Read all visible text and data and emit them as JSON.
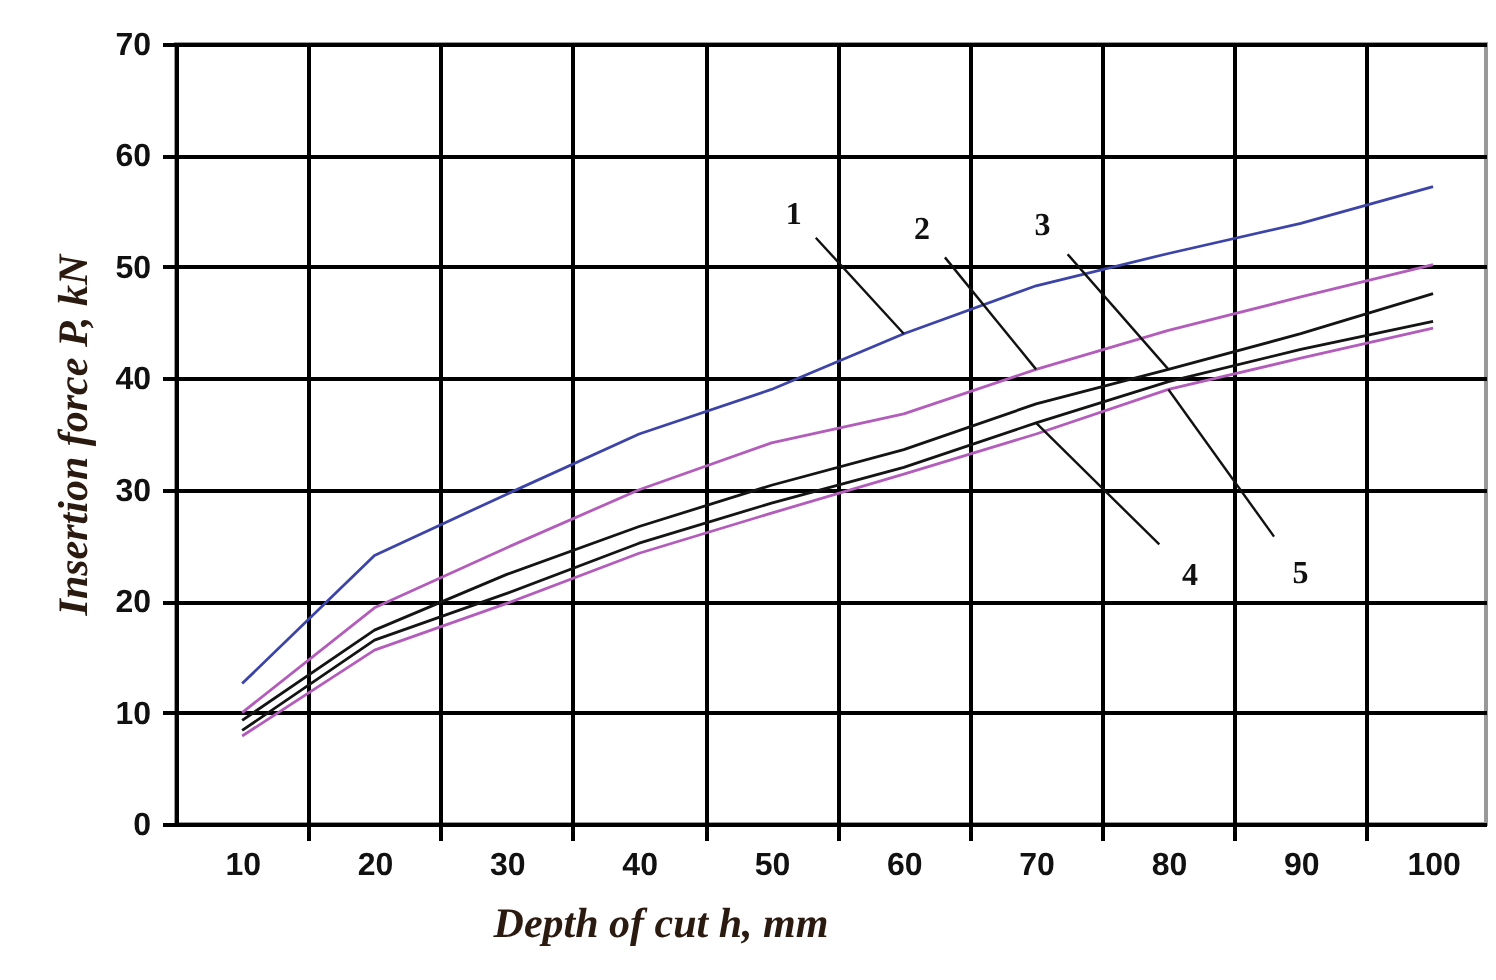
{
  "chart_data": {
    "type": "line",
    "xlabel": "Depth of cut h, mm",
    "ylabel": "Insertion force P, kN",
    "x": [
      10,
      20,
      30,
      40,
      50,
      60,
      70,
      80,
      90,
      100
    ],
    "series": [
      {
        "color": "#3d44a8",
        "values": [
          12.6,
          24.1,
          29.6,
          35,
          39,
          44,
          48.3,
          51.2,
          53.9,
          57.2
        ]
      },
      {
        "color": "#b35cbb",
        "values": [
          10,
          19.4,
          24.8,
          30,
          34.2,
          36.8,
          40.8,
          44.3,
          47.3,
          50.2
        ]
      },
      {
        "color": "#141414",
        "values": [
          9.3,
          17.4,
          22.4,
          26.7,
          30.4,
          33.6,
          37.7,
          40.8,
          44,
          47.6
        ]
      },
      {
        "color": "#141414",
        "values": [
          8.4,
          16.5,
          20.7,
          25.2,
          28.8,
          32,
          36,
          39.7,
          42.6,
          45.1
        ]
      },
      {
        "color": "#b35cbb",
        "values": [
          7.9,
          15.6,
          19.8,
          24.3,
          27.9,
          31.4,
          35,
          39,
          41.8,
          44.5
        ]
      }
    ],
    "annotations": [
      {
        "text": "1",
        "x": 60,
        "y": 44
      },
      {
        "text": "2",
        "x": 70,
        "y": 40.8
      },
      {
        "text": "3",
        "x": 80,
        "y": 40.8
      },
      {
        "text": "4",
        "x": 70,
        "y": 36
      },
      {
        "text": "5",
        "x": 80,
        "y": 39
      }
    ],
    "xlim": [
      5,
      104
    ],
    "ylim": [
      0,
      70
    ],
    "xticks": [
      10,
      {
        "value": 15,
        "label": null
      },
      20,
      {
        "value": 25,
        "label": null
      },
      30,
      {
        "value": 35,
        "label": null
      },
      40,
      {
        "value": 45,
        "label": null
      },
      50,
      {
        "value": 55,
        "label": null
      },
      60,
      {
        "value": 65,
        "label": null
      },
      70,
      {
        "value": 75,
        "label": null
      },
      80,
      {
        "value": 85,
        "label": null
      },
      90,
      {
        "value": 95,
        "label": null
      },
      100
    ],
    "yticks": [
      0,
      10,
      20,
      30,
      40,
      50,
      60,
      70
    ],
    "grid": true,
    "marker": "none",
    "line_style": "solid"
  }
}
